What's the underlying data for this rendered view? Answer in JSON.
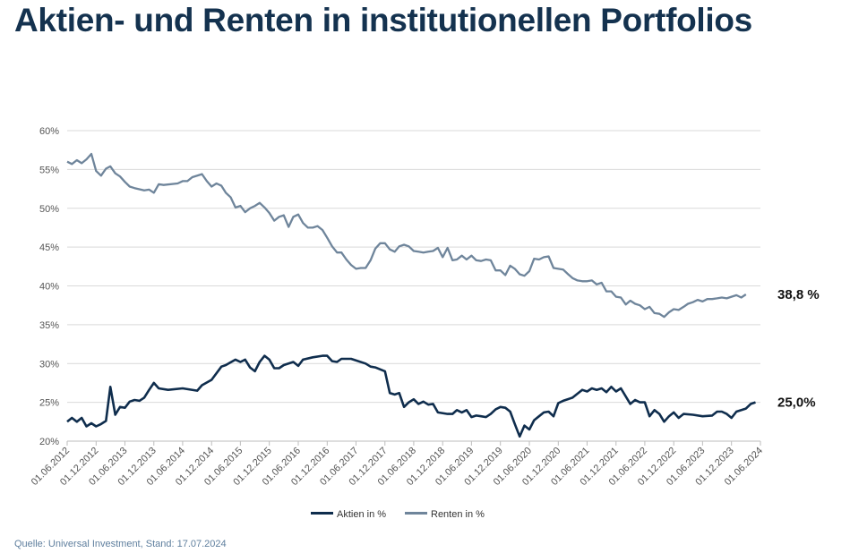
{
  "title": "Aktien- und Renten in institutionellen Portfolios",
  "source": "Quelle: Universal Investment, Stand: 17.07.2024",
  "chart_data": {
    "type": "line",
    "ylim": [
      0.2,
      0.6
    ],
    "y_ticks": [
      "60%",
      "55%",
      "50%",
      "45%",
      "40%",
      "35%",
      "30%",
      "25%",
      "20%"
    ],
    "y_tick_values": [
      0.6,
      0.55,
      0.5,
      0.45,
      0.4,
      0.35,
      0.3,
      0.25,
      0.2
    ],
    "x_range": [
      "2012-06-01",
      "2024-06-01"
    ],
    "x_ticks": [
      "01.06.2012",
      "01.12.2012",
      "01.06.2013",
      "01.12.2013",
      "01.06.2014",
      "01.12.2014",
      "01.06.2015",
      "01.12.2015",
      "01.06.2016",
      "01.12.2016",
      "01.06.2017",
      "01.12.2017",
      "01.06.2018",
      "01.12.2018",
      "01.06.2019",
      "01.12.2019",
      "01.06.2020",
      "01.12.2020",
      "01.06.2021",
      "01.12.2021",
      "01.06.2022",
      "01.12.2022",
      "01.06.2023",
      "01.12.2023",
      "01.06.2024"
    ],
    "grid": true,
    "legend_position": "bottom-center",
    "series": [
      {
        "name": "Aktien in %",
        "color": "#0f2d4d",
        "end_label": "25,0%",
        "points": [
          [
            "2012-06-01",
            0.225
          ],
          [
            "2012-07-01",
            0.23
          ],
          [
            "2012-08-01",
            0.225
          ],
          [
            "2012-09-01",
            0.23
          ],
          [
            "2012-10-01",
            0.219
          ],
          [
            "2012-11-01",
            0.223
          ],
          [
            "2012-12-01",
            0.219
          ],
          [
            "2013-01-01",
            0.222
          ],
          [
            "2013-02-01",
            0.226
          ],
          [
            "2013-03-01",
            0.27
          ],
          [
            "2013-04-01",
            0.234
          ],
          [
            "2013-05-01",
            0.244
          ],
          [
            "2013-06-01",
            0.243
          ],
          [
            "2013-07-01",
            0.251
          ],
          [
            "2013-08-01",
            0.253
          ],
          [
            "2013-09-01",
            0.252
          ],
          [
            "2013-10-01",
            0.256
          ],
          [
            "2013-11-01",
            0.266
          ],
          [
            "2013-12-01",
            0.275
          ],
          [
            "2014-01-01",
            0.268
          ],
          [
            "2014-03-01",
            0.266
          ],
          [
            "2014-06-01",
            0.268
          ],
          [
            "2014-09-01",
            0.265
          ],
          [
            "2014-10-01",
            0.272
          ],
          [
            "2014-12-01",
            0.279
          ],
          [
            "2015-02-01",
            0.296
          ],
          [
            "2015-03-01",
            0.298
          ],
          [
            "2015-05-01",
            0.305
          ],
          [
            "2015-06-01",
            0.302
          ],
          [
            "2015-07-01",
            0.305
          ],
          [
            "2015-08-01",
            0.295
          ],
          [
            "2015-09-01",
            0.29
          ],
          [
            "2015-10-01",
            0.302
          ],
          [
            "2015-11-01",
            0.31
          ],
          [
            "2015-12-01",
            0.305
          ],
          [
            "2016-01-01",
            0.294
          ],
          [
            "2016-02-01",
            0.294
          ],
          [
            "2016-03-01",
            0.298
          ],
          [
            "2016-05-01",
            0.302
          ],
          [
            "2016-06-01",
            0.297
          ],
          [
            "2016-07-01",
            0.305
          ],
          [
            "2016-09-01",
            0.308
          ],
          [
            "2016-11-01",
            0.31
          ],
          [
            "2016-12-01",
            0.31
          ],
          [
            "2017-01-01",
            0.303
          ],
          [
            "2017-02-01",
            0.302
          ],
          [
            "2017-03-01",
            0.306
          ],
          [
            "2017-05-01",
            0.306
          ],
          [
            "2017-08-01",
            0.3
          ],
          [
            "2017-09-01",
            0.296
          ],
          [
            "2017-10-01",
            0.295
          ],
          [
            "2017-12-01",
            0.29
          ],
          [
            "2018-01-01",
            0.262
          ],
          [
            "2018-02-01",
            0.26
          ],
          [
            "2018-03-01",
            0.262
          ],
          [
            "2018-04-01",
            0.244
          ],
          [
            "2018-05-01",
            0.25
          ],
          [
            "2018-06-01",
            0.254
          ],
          [
            "2018-07-01",
            0.248
          ],
          [
            "2018-08-01",
            0.251
          ],
          [
            "2018-09-01",
            0.247
          ],
          [
            "2018-10-01",
            0.248
          ],
          [
            "2018-11-01",
            0.237
          ],
          [
            "2019-01-01",
            0.235
          ],
          [
            "2019-02-01",
            0.235
          ],
          [
            "2019-03-01",
            0.24
          ],
          [
            "2019-04-01",
            0.237
          ],
          [
            "2019-05-01",
            0.24
          ],
          [
            "2019-06-01",
            0.231
          ],
          [
            "2019-07-01",
            0.233
          ],
          [
            "2019-08-01",
            0.232
          ],
          [
            "2019-09-01",
            0.231
          ],
          [
            "2019-10-01",
            0.235
          ],
          [
            "2019-11-01",
            0.241
          ],
          [
            "2019-12-01",
            0.244
          ],
          [
            "2020-01-01",
            0.243
          ],
          [
            "2020-02-01",
            0.238
          ],
          [
            "2020-03-01",
            0.222
          ],
          [
            "2020-04-01",
            0.206
          ],
          [
            "2020-05-01",
            0.22
          ],
          [
            "2020-06-01",
            0.215
          ],
          [
            "2020-07-01",
            0.227
          ],
          [
            "2020-08-01",
            0.232
          ],
          [
            "2020-09-01",
            0.237
          ],
          [
            "2020-10-01",
            0.238
          ],
          [
            "2020-11-01",
            0.232
          ],
          [
            "2020-12-01",
            0.249
          ],
          [
            "2021-01-01",
            0.252
          ],
          [
            "2021-03-01",
            0.256
          ],
          [
            "2021-05-01",
            0.266
          ],
          [
            "2021-06-01",
            0.264
          ],
          [
            "2021-07-01",
            0.268
          ],
          [
            "2021-08-01",
            0.266
          ],
          [
            "2021-09-01",
            0.268
          ],
          [
            "2021-10-01",
            0.263
          ],
          [
            "2021-11-01",
            0.27
          ],
          [
            "2021-12-01",
            0.264
          ],
          [
            "2022-01-01",
            0.268
          ],
          [
            "2022-03-01",
            0.248
          ],
          [
            "2022-04-01",
            0.253
          ],
          [
            "2022-05-01",
            0.25
          ],
          [
            "2022-06-01",
            0.25
          ],
          [
            "2022-07-01",
            0.232
          ],
          [
            "2022-08-01",
            0.24
          ],
          [
            "2022-09-01",
            0.235
          ],
          [
            "2022-10-01",
            0.225
          ],
          [
            "2022-11-01",
            0.232
          ],
          [
            "2022-12-01",
            0.237
          ],
          [
            "2023-01-01",
            0.23
          ],
          [
            "2023-02-01",
            0.235
          ],
          [
            "2023-04-01",
            0.234
          ],
          [
            "2023-06-01",
            0.232
          ],
          [
            "2023-08-01",
            0.233
          ],
          [
            "2023-09-01",
            0.238
          ],
          [
            "2023-10-01",
            0.238
          ],
          [
            "2023-11-01",
            0.235
          ],
          [
            "2023-12-01",
            0.23
          ],
          [
            "2024-01-01",
            0.238
          ],
          [
            "2024-03-01",
            0.242
          ],
          [
            "2024-04-01",
            0.248
          ],
          [
            "2024-05-01",
            0.25
          ]
        ]
      },
      {
        "name": "Renten in %",
        "color": "#6f859b",
        "end_label": "38,8 %",
        "points": [
          [
            "2012-06-01",
            0.56
          ],
          [
            "2012-07-01",
            0.557
          ],
          [
            "2012-08-01",
            0.562
          ],
          [
            "2012-09-01",
            0.558
          ],
          [
            "2012-10-01",
            0.563
          ],
          [
            "2012-11-01",
            0.57
          ],
          [
            "2012-12-01",
            0.548
          ],
          [
            "2013-01-01",
            0.542
          ],
          [
            "2013-02-01",
            0.551
          ],
          [
            "2013-03-01",
            0.554
          ],
          [
            "2013-04-01",
            0.545
          ],
          [
            "2013-05-01",
            0.541
          ],
          [
            "2013-06-01",
            0.534
          ],
          [
            "2013-07-01",
            0.528
          ],
          [
            "2013-08-01",
            0.526
          ],
          [
            "2013-10-01",
            0.523
          ],
          [
            "2013-11-01",
            0.524
          ],
          [
            "2013-12-01",
            0.52
          ],
          [
            "2014-01-01",
            0.531
          ],
          [
            "2014-02-01",
            0.53
          ],
          [
            "2014-05-01",
            0.532
          ],
          [
            "2014-06-01",
            0.535
          ],
          [
            "2014-07-01",
            0.535
          ],
          [
            "2014-08-01",
            0.54
          ],
          [
            "2014-10-01",
            0.544
          ],
          [
            "2014-11-01",
            0.535
          ],
          [
            "2014-12-01",
            0.528
          ],
          [
            "2015-01-01",
            0.532
          ],
          [
            "2015-02-01",
            0.529
          ],
          [
            "2015-03-01",
            0.52
          ],
          [
            "2015-04-01",
            0.514
          ],
          [
            "2015-05-01",
            0.501
          ],
          [
            "2015-06-01",
            0.503
          ],
          [
            "2015-07-01",
            0.495
          ],
          [
            "2015-08-01",
            0.5
          ],
          [
            "2015-09-01",
            0.503
          ],
          [
            "2015-10-01",
            0.507
          ],
          [
            "2015-11-01",
            0.501
          ],
          [
            "2015-12-01",
            0.494
          ],
          [
            "2016-01-01",
            0.484
          ],
          [
            "2016-02-01",
            0.489
          ],
          [
            "2016-03-01",
            0.491
          ],
          [
            "2016-04-01",
            0.476
          ],
          [
            "2016-05-01",
            0.489
          ],
          [
            "2016-06-01",
            0.492
          ],
          [
            "2016-07-01",
            0.481
          ],
          [
            "2016-08-01",
            0.475
          ],
          [
            "2016-09-01",
            0.475
          ],
          [
            "2016-10-01",
            0.477
          ],
          [
            "2016-11-01",
            0.472
          ],
          [
            "2016-12-01",
            0.462
          ],
          [
            "2017-01-01",
            0.451
          ],
          [
            "2017-02-01",
            0.443
          ],
          [
            "2017-03-01",
            0.443
          ],
          [
            "2017-04-01",
            0.434
          ],
          [
            "2017-05-01",
            0.427
          ],
          [
            "2017-06-01",
            0.422
          ],
          [
            "2017-07-01",
            0.423
          ],
          [
            "2017-08-01",
            0.423
          ],
          [
            "2017-09-01",
            0.433
          ],
          [
            "2017-10-01",
            0.448
          ],
          [
            "2017-11-01",
            0.455
          ],
          [
            "2017-12-01",
            0.455
          ],
          [
            "2018-01-01",
            0.447
          ],
          [
            "2018-02-01",
            0.444
          ],
          [
            "2018-03-01",
            0.451
          ],
          [
            "2018-04-01",
            0.453
          ],
          [
            "2018-05-01",
            0.451
          ],
          [
            "2018-06-01",
            0.445
          ],
          [
            "2018-07-01",
            0.444
          ],
          [
            "2018-08-01",
            0.443
          ],
          [
            "2018-09-01",
            0.444
          ],
          [
            "2018-10-01",
            0.445
          ],
          [
            "2018-11-01",
            0.449
          ],
          [
            "2018-12-01",
            0.437
          ],
          [
            "2019-01-01",
            0.449
          ],
          [
            "2019-02-01",
            0.433
          ],
          [
            "2019-03-01",
            0.434
          ],
          [
            "2019-04-01",
            0.439
          ],
          [
            "2019-05-01",
            0.434
          ],
          [
            "2019-06-01",
            0.439
          ],
          [
            "2019-07-01",
            0.433
          ],
          [
            "2019-08-01",
            0.432
          ],
          [
            "2019-09-01",
            0.434
          ],
          [
            "2019-10-01",
            0.433
          ],
          [
            "2019-11-01",
            0.42
          ],
          [
            "2019-12-01",
            0.42
          ],
          [
            "2020-01-01",
            0.414
          ],
          [
            "2020-02-01",
            0.426
          ],
          [
            "2020-03-01",
            0.422
          ],
          [
            "2020-04-01",
            0.415
          ],
          [
            "2020-05-01",
            0.413
          ],
          [
            "2020-06-01",
            0.419
          ],
          [
            "2020-07-01",
            0.435
          ],
          [
            "2020-08-01",
            0.434
          ],
          [
            "2020-09-01",
            0.437
          ],
          [
            "2020-10-01",
            0.438
          ],
          [
            "2020-11-01",
            0.423
          ],
          [
            "2020-12-01",
            0.422
          ],
          [
            "2021-01-01",
            0.421
          ],
          [
            "2021-02-01",
            0.415
          ],
          [
            "2021-03-01",
            0.41
          ],
          [
            "2021-04-01",
            0.407
          ],
          [
            "2021-05-01",
            0.406
          ],
          [
            "2021-06-01",
            0.406
          ],
          [
            "2021-07-01",
            0.407
          ],
          [
            "2021-08-01",
            0.402
          ],
          [
            "2021-09-01",
            0.404
          ],
          [
            "2021-10-01",
            0.393
          ],
          [
            "2021-11-01",
            0.393
          ],
          [
            "2021-12-01",
            0.386
          ],
          [
            "2022-01-01",
            0.385
          ],
          [
            "2022-02-01",
            0.376
          ],
          [
            "2022-03-01",
            0.381
          ],
          [
            "2022-04-01",
            0.377
          ],
          [
            "2022-05-01",
            0.375
          ],
          [
            "2022-06-01",
            0.37
          ],
          [
            "2022-07-01",
            0.373
          ],
          [
            "2022-08-01",
            0.365
          ],
          [
            "2022-09-01",
            0.364
          ],
          [
            "2022-10-01",
            0.36
          ],
          [
            "2022-11-01",
            0.366
          ],
          [
            "2022-12-01",
            0.37
          ],
          [
            "2023-01-01",
            0.369
          ],
          [
            "2023-02-01",
            0.373
          ],
          [
            "2023-03-01",
            0.377
          ],
          [
            "2023-04-01",
            0.379
          ],
          [
            "2023-05-01",
            0.382
          ],
          [
            "2023-06-01",
            0.38
          ],
          [
            "2023-07-01",
            0.383
          ],
          [
            "2023-08-01",
            0.383
          ],
          [
            "2023-09-01",
            0.384
          ],
          [
            "2023-10-01",
            0.385
          ],
          [
            "2023-11-01",
            0.384
          ],
          [
            "2023-12-01",
            0.386
          ],
          [
            "2024-01-01",
            0.388
          ],
          [
            "2024-02-01",
            0.385
          ],
          [
            "2024-03-01",
            0.389
          ]
        ]
      }
    ]
  }
}
